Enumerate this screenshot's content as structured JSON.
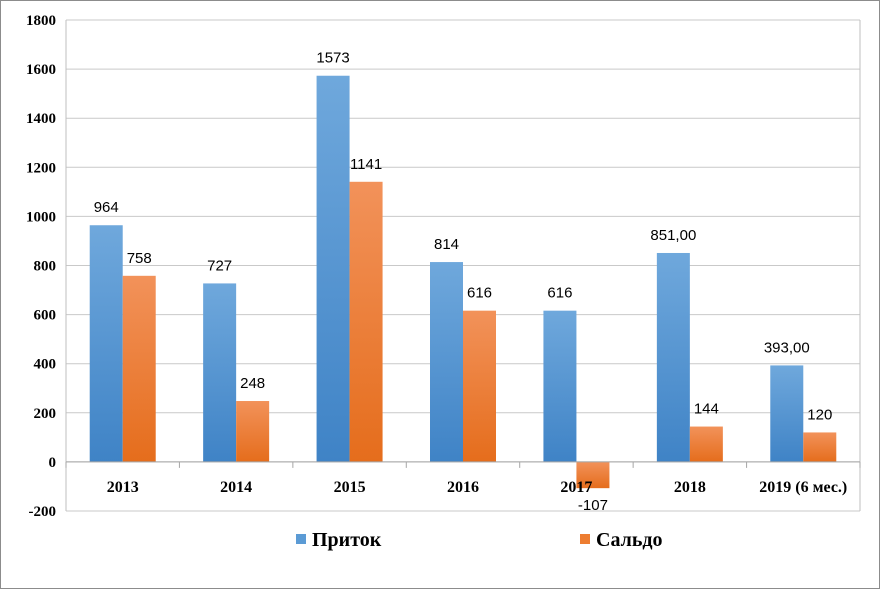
{
  "chart_data": {
    "type": "bar",
    "categories": [
      "2013",
      "2014",
      "2015",
      "2016",
      "2017",
      "2018",
      "2019 (6 мес.)"
    ],
    "series": [
      {
        "name": "Приток",
        "values": [
          964,
          727,
          1573,
          814,
          616,
          851,
          393
        ],
        "labels": [
          "964",
          "727",
          "1573",
          "814",
          "616",
          "851,00",
          "393,00"
        ],
        "color": "#5B9BD5"
      },
      {
        "name": "Сальдо",
        "values": [
          758,
          248,
          1141,
          616,
          -107,
          144,
          120
        ],
        "labels": [
          "758",
          "248",
          "1141",
          "616",
          "-107",
          "144",
          "120"
        ],
        "color": "#ED7D31"
      }
    ],
    "ylim": [
      -200,
      1800
    ],
    "yticks": [
      -200,
      0,
      200,
      400,
      600,
      800,
      1000,
      1200,
      1400,
      1600,
      1800
    ],
    "grid": true,
    "legend_position": "bottom"
  }
}
